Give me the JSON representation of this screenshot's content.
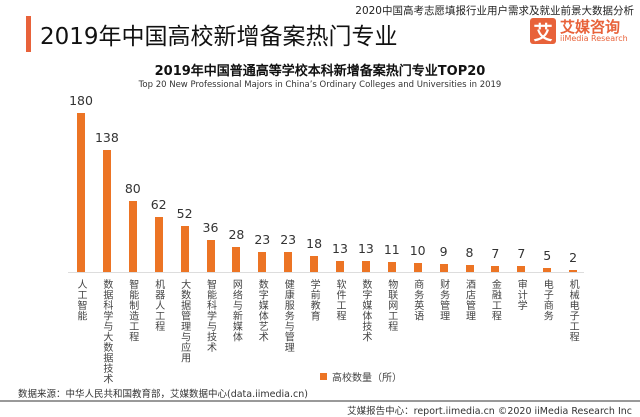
{
  "header": {
    "report_title": "2020中国高考志愿填报行业用户需求及就业前景大数据分析",
    "page_title": "2019年中国高校新增备案热门专业",
    "logo_mark": "艾",
    "logo_cn": "艾媒咨询",
    "logo_en": "iiMedia Research"
  },
  "chart_data": {
    "type": "bar",
    "title": "2019年中国普通高等学校本科新增备案热门专业TOP20",
    "subtitle": "Top 20 New Professional Majors in China’s Ordinary Colleges and Universities in 2019",
    "categories": [
      "人工智能",
      "数据科学与大数据技术",
      "智能制造工程",
      "机器人工程",
      "大数据管理与应用",
      "智能科学与技术",
      "网络与新媒体",
      "数字媒体艺术",
      "健康服务与管理",
      "学前教育",
      "软件工程",
      "数字媒体技术",
      "物联网工程",
      "商务英语",
      "财务管理",
      "酒店管理",
      "金融工程",
      "审计学",
      "电子商务",
      "机械电子工程"
    ],
    "series": [
      {
        "name": "高校数量（所）",
        "values": [
          180,
          138,
          80,
          62,
          52,
          36,
          28,
          23,
          23,
          18,
          13,
          13,
          11,
          10,
          9,
          8,
          7,
          7,
          5,
          2
        ],
        "color": "#ec7424"
      }
    ],
    "ylim": [
      0,
      180
    ],
    "grid": false,
    "legend": "bottom-center"
  },
  "footer": {
    "source": "数据来源：中华人民共和国教育部，艾媒数据中心(data.iimedia.cn)",
    "copyright": "艾媒报告中心：report.iimedia.cn  ©2020  iiMedia Research Inc"
  }
}
